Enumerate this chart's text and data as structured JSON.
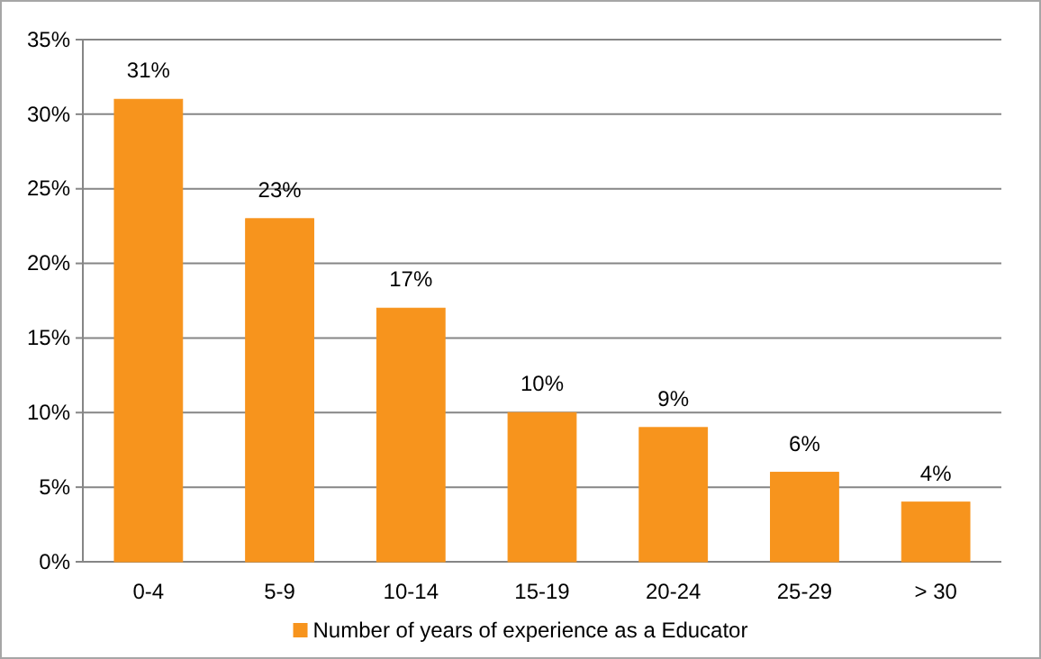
{
  "chart_data": {
    "type": "bar",
    "categories": [
      "0-4",
      "5-9",
      "10-14",
      "15-19",
      "20-24",
      "25-29",
      "> 30"
    ],
    "series": [
      {
        "name": "Number of years of experience as a Educator",
        "color": "#f7941d",
        "values": [
          31,
          23,
          17,
          10,
          9,
          6,
          4
        ],
        "value_labels": [
          "31%",
          "23%",
          "17%",
          "10%",
          "9%",
          "6%",
          "4%"
        ]
      }
    ],
    "ylim": [
      0,
      35
    ],
    "yticks": [
      {
        "value": 0,
        "label": "0%"
      },
      {
        "value": 5,
        "label": "5%"
      },
      {
        "value": 10,
        "label": "10%"
      },
      {
        "value": 15,
        "label": "15%"
      },
      {
        "value": 20,
        "label": "20%"
      },
      {
        "value": 25,
        "label": "25%"
      },
      {
        "value": 30,
        "label": "30%"
      },
      {
        "value": 35,
        "label": "35%"
      }
    ],
    "grid": "y",
    "legend": "bottom"
  }
}
